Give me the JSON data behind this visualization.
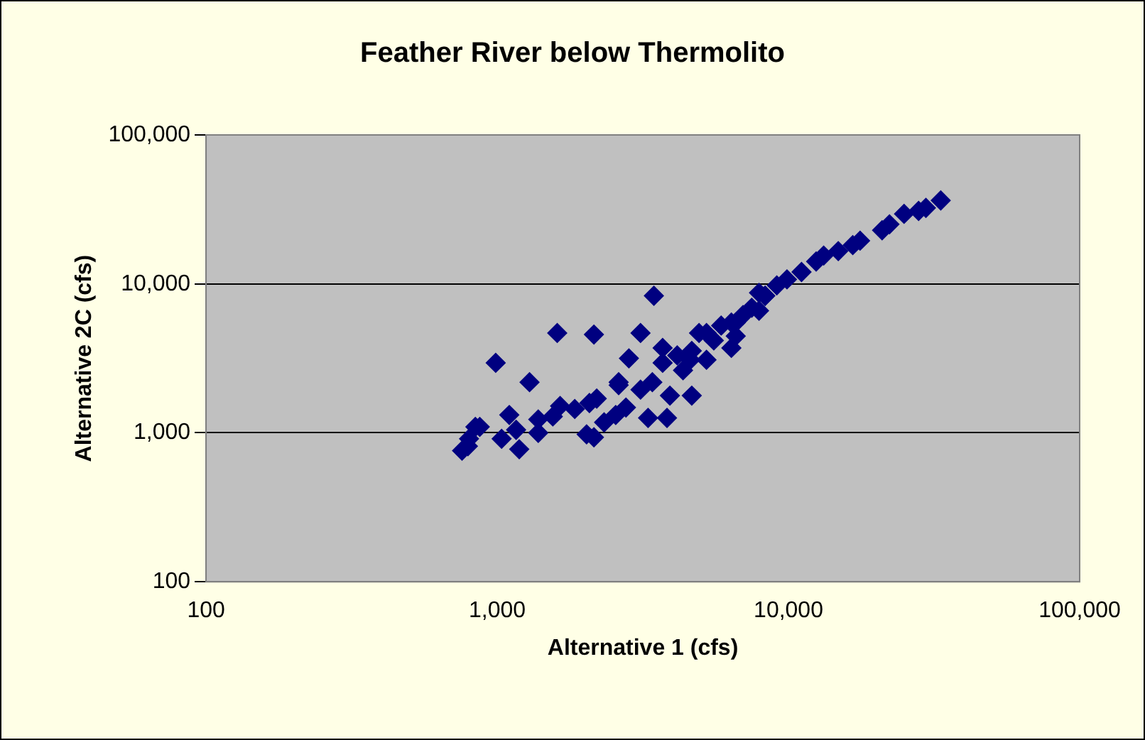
{
  "chart_data": {
    "type": "scatter",
    "title": "Feather River below Thermolito",
    "xlabel": "Alternative 1 (cfs)",
    "ylabel": "Alternative 2C (cfs)",
    "log": "xy",
    "xlim": [
      100,
      100000
    ],
    "ylim": [
      100,
      100000
    ],
    "xticks": [
      {
        "value": 100,
        "label": "100"
      },
      {
        "value": 1000,
        "label": "1,000"
      },
      {
        "value": 10000,
        "label": "10,000"
      },
      {
        "value": 100000,
        "label": "100,000"
      }
    ],
    "yticks": [
      {
        "value": 100,
        "label": "100"
      },
      {
        "value": 1000,
        "label": "1,000"
      },
      {
        "value": 10000,
        "label": "10,000"
      },
      {
        "value": 100000,
        "label": "100,000"
      }
    ],
    "grid": "y",
    "marker": "diamond",
    "legend": false,
    "series": [
      {
        "color": "#000080",
        "x": [
          757,
          793,
          871,
          988,
          1035,
          1190,
          1383,
          1552,
          1644,
          1846,
          2073,
          2196,
          2552,
          2612,
          2832,
          3105,
          3409,
          3698,
          3917,
          4150,
          4345,
          4656,
          4932,
          5231,
          5543,
          5874,
          6368,
          6592,
          6982,
          7482,
          7925,
          8318,
          9120,
          9885,
          11090,
          12450,
          14830,
          17620,
          20970,
          24950,
          29650,
          33340,
          3451,
          4603,
          3828,
          4656,
          1607,
          2148,
          1291,
          2027,
          2148,
          841,
          1161,
          3105,
          6368,
          7925,
          8318,
          13210,
          16630,
          22230,
          27990,
          2328,
          1383,
          3296,
          2767,
          5231,
          6592,
          3698,
          2612,
          800,
          1100
        ],
        "values": [
          759,
          813,
          1096,
          2951,
          912,
          776,
          1230,
          1288,
          1514,
          1445,
          1585,
          1698,
          1318,
          2089,
          3162,
          1950,
          2188,
          2951,
          1778,
          3311,
          2630,
          3548,
          4677,
          4677,
          4169,
          5248,
          5495,
          4467,
          6166,
          6918,
          8710,
          8318,
          9772,
          10720,
          12020,
          14130,
          16600,
          19500,
          22910,
          29510,
          32360,
          36310,
          8318,
          3090,
          1259,
          1778,
          4677,
          4571,
          2188,
          977,
          933,
          1096,
          1047,
          4677,
          3715,
          6607,
          8318,
          15490,
          18200,
          25120,
          30900,
          1175,
          1000,
          1259,
          1479,
          3090,
          5495,
          3715,
          2188,
          912,
          1318
        ]
      }
    ]
  }
}
